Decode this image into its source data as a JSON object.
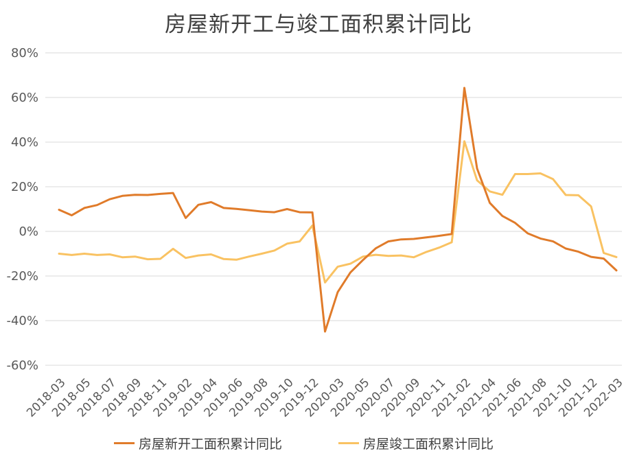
{
  "chart_data": {
    "type": "line",
    "title": "房屋新开工与竣工面积累计同比",
    "xlabel": "",
    "ylabel": "",
    "ylim": [
      -60,
      80
    ],
    "yticks": [
      "80%",
      "60%",
      "40%",
      "20%",
      "0%",
      "-20%",
      "-40%",
      "-60%"
    ],
    "ytick_values": [
      80,
      60,
      40,
      20,
      0,
      -20,
      -40,
      -60
    ],
    "grid": true,
    "legend_position": "bottom",
    "x": [
      "2018-03",
      "2018-04",
      "2018-05",
      "2018-06",
      "2018-07",
      "2018-08",
      "2018-09",
      "2018-10",
      "2018-11",
      "2018-12",
      "2019-02",
      "2019-03",
      "2019-04",
      "2019-05",
      "2019-06",
      "2019-07",
      "2019-08",
      "2019-09",
      "2019-10",
      "2019-11",
      "2019-12",
      "2020-02",
      "2020-03",
      "2020-04",
      "2020-05",
      "2020-06",
      "2020-07",
      "2020-08",
      "2020-09",
      "2020-10",
      "2020-11",
      "2020-12",
      "2021-02",
      "2021-03",
      "2021-04",
      "2021-05",
      "2021-06",
      "2021-07",
      "2021-08",
      "2021-09",
      "2021-10",
      "2021-11",
      "2021-12",
      "2022-02",
      "2022-03"
    ],
    "xtick_labels": [
      "2018-03",
      "2018-05",
      "2018-07",
      "2018-09",
      "2018-11",
      "2019-02",
      "2019-04",
      "2019-06",
      "2019-08",
      "2019-10",
      "2019-12",
      "2020-03",
      "2020-05",
      "2020-07",
      "2020-09",
      "2020-11",
      "2021-02",
      "2021-04",
      "2021-06",
      "2021-08",
      "2021-10",
      "2021-12",
      "2022-03"
    ],
    "series": [
      {
        "name": "房屋新开工面积累计同比",
        "color": "#E07B2A",
        "values": [
          9.7,
          7.2,
          10.5,
          11.8,
          14.4,
          15.9,
          16.4,
          16.3,
          16.8,
          17.2,
          6.0,
          11.9,
          13.1,
          10.5,
          10.1,
          9.5,
          8.9,
          8.6,
          10.0,
          8.6,
          8.5,
          -44.9,
          -27.2,
          -18.4,
          -12.8,
          -7.6,
          -4.5,
          -3.6,
          -3.4,
          -2.7,
          -2.0,
          -1.2,
          64.3,
          28.2,
          12.8,
          6.9,
          3.8,
          -0.9,
          -3.2,
          -4.5,
          -7.7,
          -9.1,
          -11.4,
          -12.2,
          -17.5
        ]
      },
      {
        "name": "房屋竣工面积累计同比",
        "color": "#F9C262",
        "values": [
          -10.0,
          -10.6,
          -10.0,
          -10.6,
          -10.3,
          -11.6,
          -11.3,
          -12.5,
          -12.3,
          -7.8,
          -11.9,
          -10.8,
          -10.3,
          -12.4,
          -12.7,
          -11.3,
          -10.0,
          -8.6,
          -5.5,
          -4.5,
          2.6,
          -22.9,
          -15.8,
          -14.5,
          -11.3,
          -10.5,
          -11.0,
          -10.8,
          -11.6,
          -9.2,
          -7.3,
          -4.9,
          40.4,
          22.9,
          17.9,
          16.4,
          25.7,
          25.7,
          26.0,
          23.4,
          16.3,
          16.2,
          11.2,
          -9.7,
          -11.5
        ]
      }
    ]
  }
}
